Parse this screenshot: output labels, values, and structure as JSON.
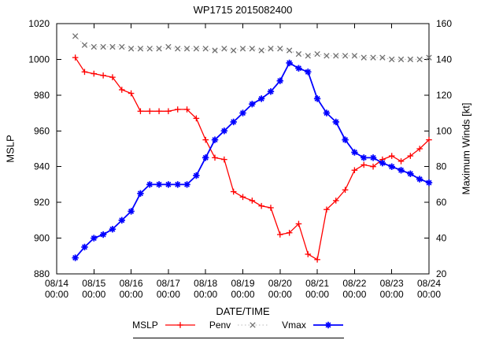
{
  "title": "WP1715 2015082400",
  "chart_data": {
    "type": "line",
    "title": "WP1715 2015082400",
    "xlabel": "DATE/TIME",
    "ylabel_left": "MSLP",
    "ylabel_right": "Maximum Winds [kt]",
    "grid": false,
    "x_axis": {
      "min_day": 0,
      "max_day": 10,
      "tick_labels": [
        {
          "date": "08/14",
          "time": "00:00"
        },
        {
          "date": "08/15",
          "time": "00:00"
        },
        {
          "date": "08/16",
          "time": "00:00"
        },
        {
          "date": "08/17",
          "time": "00:00"
        },
        {
          "date": "08/18",
          "time": "00:00"
        },
        {
          "date": "08/19",
          "time": "00:00"
        },
        {
          "date": "08/20",
          "time": "00:00"
        },
        {
          "date": "08/21",
          "time": "00:00"
        },
        {
          "date": "08/22",
          "time": "00:00"
        },
        {
          "date": "08/23",
          "time": "00:00"
        },
        {
          "date": "08/24",
          "time": "00:00"
        }
      ]
    },
    "y_axis_left": {
      "label": "MSLP",
      "min": 880,
      "max": 1020,
      "step": 20
    },
    "y_axis_right": {
      "label": "Maximum Winds [kt]",
      "min": 20,
      "max": 160,
      "step": 20
    },
    "x_days": [
      0.5,
      0.75,
      1,
      1.25,
      1.5,
      1.75,
      2,
      2.25,
      2.5,
      2.75,
      3,
      3.25,
      3.5,
      3.75,
      4,
      4.25,
      4.5,
      4.75,
      5,
      5.25,
      5.5,
      5.75,
      6,
      6.25,
      6.5,
      6.75,
      7,
      7.25,
      7.5,
      7.75,
      8,
      8.25,
      8.5,
      8.75,
      9,
      9.25,
      9.5,
      9.75,
      10
    ],
    "series": [
      {
        "name": "MSLP",
        "axis": "left",
        "line_color": "#ff0000",
        "marker_color": "#ff0000",
        "marker": "plus",
        "line_style": "solid",
        "line_width": 1.3,
        "values": [
          1001,
          993,
          992,
          991,
          990,
          983,
          981,
          971,
          971,
          971,
          971,
          972,
          972,
          967,
          955,
          945,
          944,
          926,
          923,
          921,
          918,
          917,
          902,
          903,
          908,
          891,
          888,
          916,
          921,
          927,
          938,
          941,
          940,
          944,
          946,
          943,
          946,
          950,
          955
        ]
      },
      {
        "name": "Penv",
        "axis": "left",
        "line_color": "#b8b8b8",
        "marker_color": "#707070",
        "marker": "cross",
        "line_style": "dotted",
        "line_width": 1,
        "values": [
          1013,
          1008,
          1007,
          1007,
          1007,
          1007,
          1006,
          1006,
          1006,
          1006,
          1007,
          1006,
          1006,
          1006,
          1006,
          1005,
          1006,
          1005,
          1006,
          1006,
          1005,
          1006,
          1006,
          1005,
          1003,
          1002,
          1003,
          1002,
          1002,
          1002,
          1002,
          1001,
          1001,
          1001,
          1000,
          1000,
          1000,
          1000,
          1001
        ]
      },
      {
        "name": "Vmax",
        "axis": "right",
        "line_color": "#0000ff",
        "marker_color": "#0000ff",
        "marker": "star",
        "line_style": "solid",
        "line_width": 1.8,
        "values": [
          29,
          35,
          40,
          42,
          45,
          50,
          55,
          65,
          70,
          70,
          70,
          70,
          70,
          75,
          85,
          95,
          100,
          105,
          110,
          115,
          118,
          122,
          128,
          138,
          135,
          133,
          118,
          110,
          105,
          95,
          88,
          85,
          85,
          82,
          80,
          78,
          76,
          73,
          71
        ]
      }
    ],
    "legend": {
      "position": "bottom-center",
      "entries": [
        "MSLP",
        "Penv",
        "Vmax"
      ]
    }
  }
}
